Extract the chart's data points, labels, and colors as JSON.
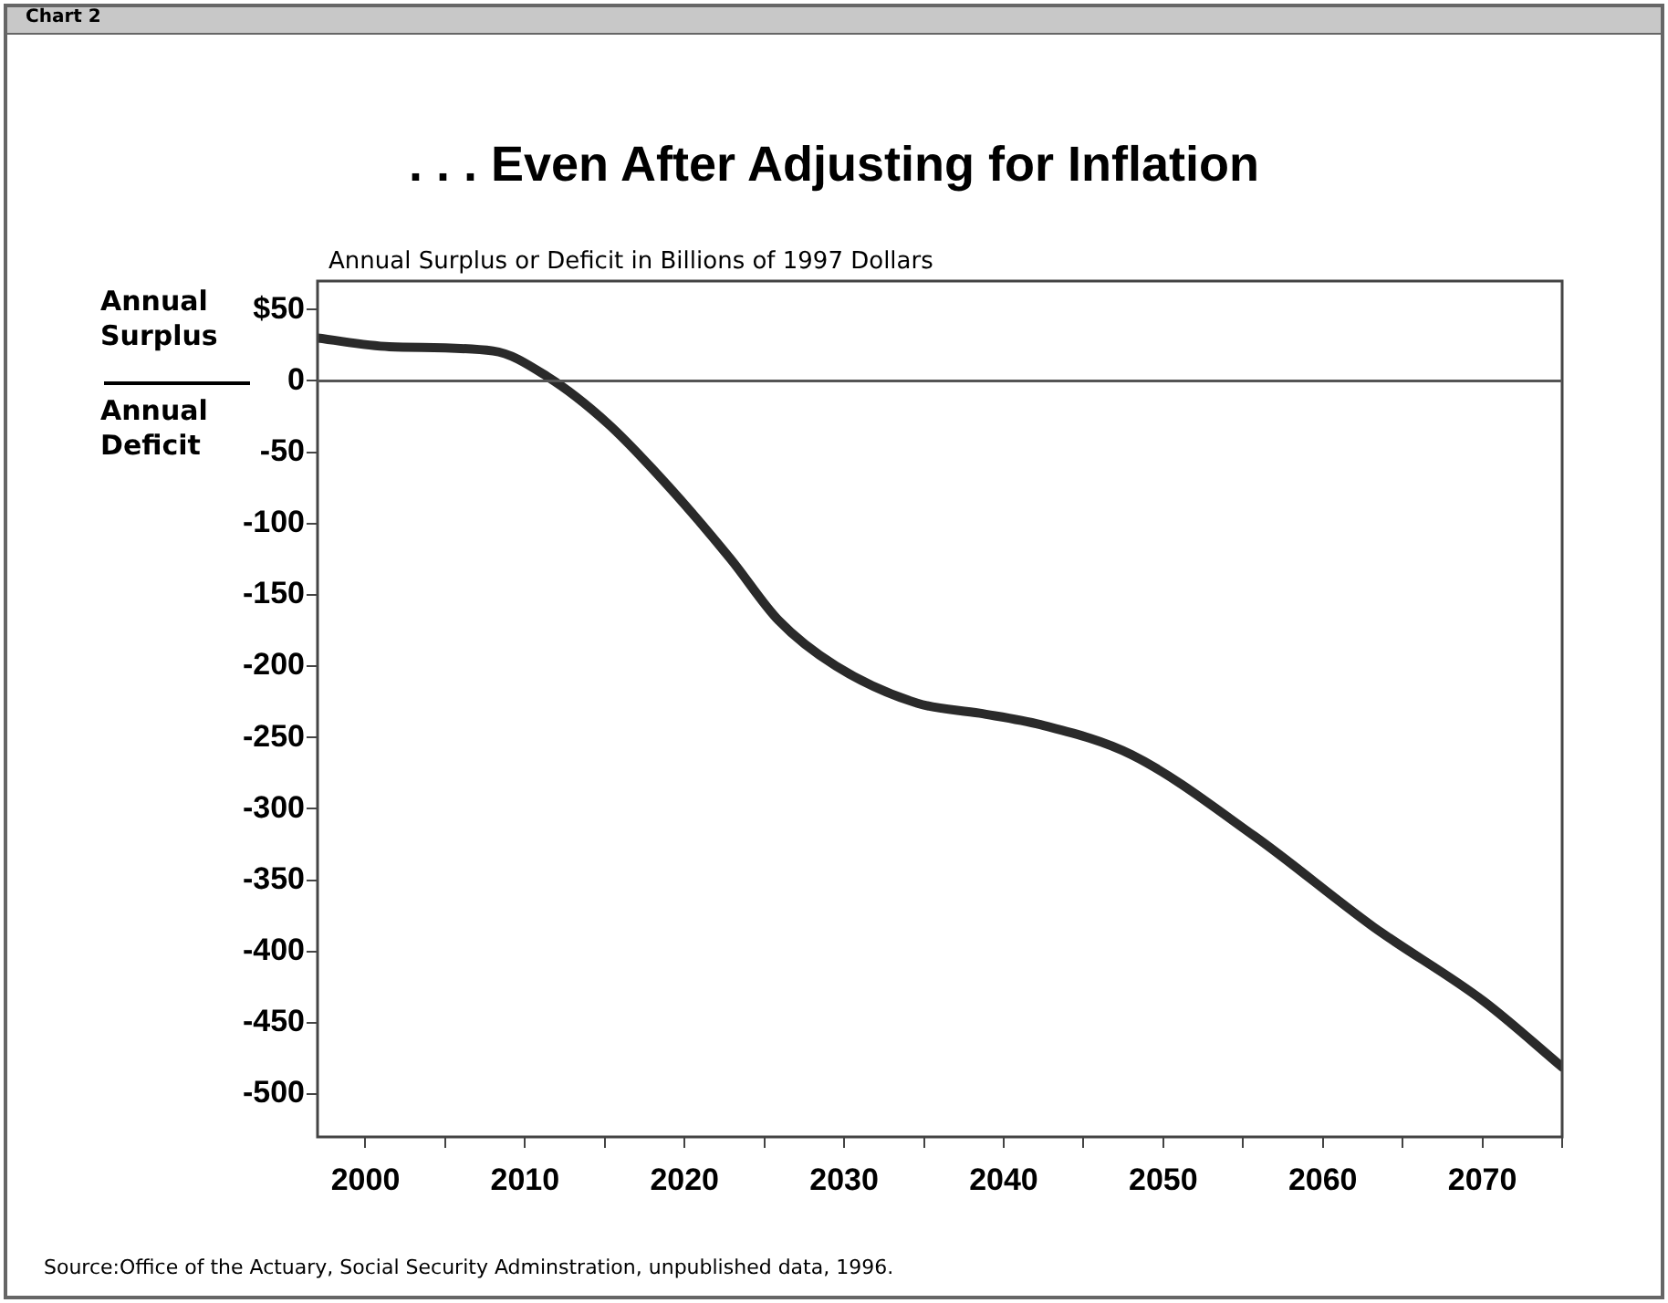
{
  "chart_data": {
    "type": "line",
    "title": ". . . Even After Adjusting for Inflation",
    "ylabel": "Annual Surplus or Deficit in Billions of 1997 Dollars",
    "annotations": [
      "Chart 2",
      "Annual Surplus",
      "Annual Deficit",
      "Source:Office of the Actuary, Social Security Adminstration, unpublished data, 1996."
    ],
    "x": [
      1997,
      2001.5,
      2008,
      2011.4,
      2015.2,
      2019,
      2022.9,
      2025.9,
      2029.5,
      2034.6,
      2038.5,
      2042.3,
      2048,
      2055.7,
      2063.2,
      2070.1,
      2075
    ],
    "series": [
      {
        "color": "#2a2a2a",
        "values": [
          30,
          24,
          21,
          3,
          -30,
          -74,
          -125,
          -168,
          -200,
          -226,
          -233,
          -241,
          -262,
          -319,
          -383,
          -435,
          -481
        ]
      }
    ],
    "xlim": [
      1997,
      2075
    ],
    "xticks": [
      2000,
      {
        "value": 2005,
        "label": null
      },
      2010,
      {
        "value": 2015,
        "label": null
      },
      2020,
      {
        "value": 2025,
        "label": null
      },
      2030,
      {
        "value": 2035,
        "label": null
      },
      2040,
      {
        "value": 2045,
        "label": null
      },
      2050,
      {
        "value": 2055,
        "label": null
      },
      2060,
      {
        "value": 2065,
        "label": null
      },
      2070,
      {
        "value": 2075,
        "label": null
      }
    ],
    "ylim": [
      -530,
      70
    ],
    "yticks": [
      {
        "value": 50,
        "label": "$50"
      },
      0,
      -50,
      -100,
      -150,
      -200,
      -250,
      -300,
      -350,
      -400,
      -450,
      -500
    ],
    "ref_lines": [
      {
        "axis": "y",
        "value": 0,
        "color": "#555555"
      }
    ],
    "grid": false,
    "legend": false,
    "marker": "none",
    "line_style": "solid"
  }
}
